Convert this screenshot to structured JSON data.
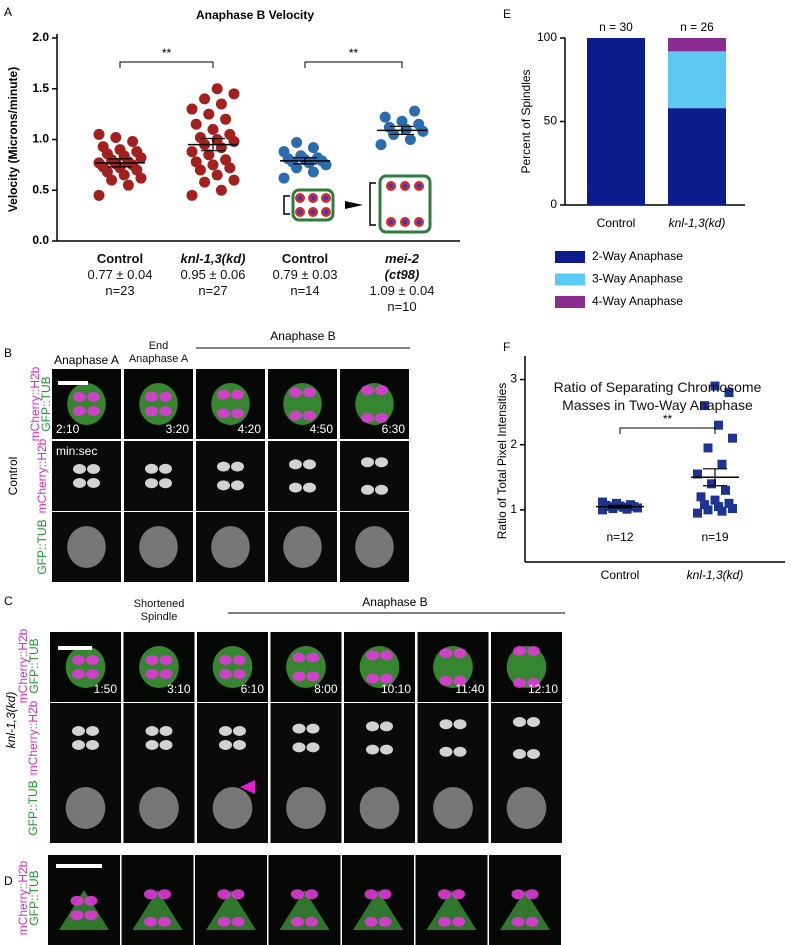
{
  "chart_data": [
    {
      "type": "strip",
      "title": "Anaphase B Velocity",
      "y_label": "Velocity (Microns/minute)",
      "ylim": [
        0,
        2
      ],
      "yticks": [
        {
          "value": 0,
          "label": "0.0"
        },
        0.5,
        {
          "value": 1,
          "label": "1.0"
        },
        1.5,
        {
          "value": 2,
          "label": "2.0"
        }
      ],
      "significance": [
        "**",
        "**"
      ],
      "series": [
        {
          "name": "Control",
          "italic": false,
          "color": "#a3201f",
          "stats_label": "0.77 ± 0.04",
          "n_label": "n=23",
          "mean": 0.77,
          "sem": 0.04,
          "values": [
            0.45,
            0.55,
            0.6,
            0.62,
            0.65,
            0.68,
            0.7,
            0.72,
            0.73,
            0.75,
            0.76,
            0.77,
            0.78,
            0.8,
            0.82,
            0.84,
            0.86,
            0.88,
            0.9,
            0.93,
            0.98,
            1.02,
            1.05
          ]
        },
        {
          "name": "knl-1,3(kd)",
          "italic": true,
          "color": "#a3201f",
          "stats_label": "0.95 ± 0.06",
          "n_label": "n=27",
          "mean": 0.95,
          "sem": 0.06,
          "values": [
            0.45,
            0.5,
            0.58,
            0.6,
            0.65,
            0.7,
            0.72,
            0.75,
            0.78,
            0.8,
            0.85,
            0.88,
            0.92,
            0.95,
            0.98,
            1.0,
            1.02,
            1.05,
            1.1,
            1.15,
            1.2,
            1.25,
            1.3,
            1.35,
            1.4,
            1.45,
            1.5
          ]
        },
        {
          "name": "Control",
          "italic": false,
          "color": "#2b6cae",
          "stats_label": "0.79 ± 0.03",
          "n_label": "n=14",
          "mean": 0.79,
          "sem": 0.03,
          "values": [
            0.62,
            0.68,
            0.72,
            0.75,
            0.77,
            0.78,
            0.79,
            0.8,
            0.81,
            0.82,
            0.84,
            0.88,
            0.92,
            0.97
          ]
        },
        {
          "name": "mei-2 (ct98)",
          "italic": true,
          "color": "#2b6cae",
          "stats_label": "1.09 ± 0.04",
          "n_label": "n=10",
          "mean": 1.09,
          "sem": 0.04,
          "values": [
            0.95,
            1.0,
            1.05,
            1.08,
            1.1,
            1.12,
            1.15,
            1.18,
            1.22,
            1.28
          ]
        }
      ]
    },
    {
      "type": "stacked_bar",
      "y_label": "Percent of Spindles",
      "ylim": [
        0,
        100
      ],
      "yticks": [
        0,
        50,
        100
      ],
      "categories": [
        "Control",
        "knl-1,3(kd)"
      ],
      "n_labels": [
        "n = 30",
        "n = 26"
      ],
      "series": [
        {
          "name": "2-Way Anaphase",
          "color": "#0c1c8e",
          "values": [
            100,
            58
          ]
        },
        {
          "name": "3-Way Anaphase",
          "color": "#5cc8f4",
          "values": [
            0,
            34
          ]
        },
        {
          "name": "4-Way Anaphase",
          "color": "#8c2c90",
          "values": [
            0,
            8
          ]
        }
      ]
    },
    {
      "type": "strip",
      "title": "Ratio of Separating Chromosome Masses in Two-Way Anaphase",
      "y_label": "Ratio of Total Pixel Intensities",
      "ylim": [
        0.2,
        3.3
      ],
      "yticks": [
        1,
        2,
        3
      ],
      "significance": [
        "**"
      ],
      "series": [
        {
          "name": "Control",
          "italic": false,
          "color": "#1d3590",
          "n_label": "n=12",
          "mean": 1.05,
          "sem": 0.02,
          "values": [
            1.0,
            1.01,
            1.02,
            1.03,
            1.04,
            1.05,
            1.05,
            1.06,
            1.07,
            1.08,
            1.1,
            1.12
          ]
        },
        {
          "name": "knl-1,3(kd)",
          "italic": true,
          "color": "#1d3590",
          "n_label": "n=19",
          "mean": 1.5,
          "sem": 0.13,
          "values": [
            0.95,
            0.98,
            1.0,
            1.02,
            1.05,
            1.08,
            1.1,
            1.15,
            1.2,
            1.3,
            1.4,
            1.55,
            1.7,
            1.95,
            2.1,
            2.3,
            2.6,
            2.8,
            2.9
          ]
        }
      ]
    }
  ],
  "panels": {
    "labels": [
      "A",
      "B",
      "C",
      "D",
      "E",
      "F"
    ],
    "B": {
      "headers": [
        "Anaphase A",
        "End Anaphase A",
        "Anaphase B"
      ],
      "condition": "Control",
      "channels": [
        "mCherry::H2b",
        "GFP::TUB"
      ],
      "row_labels": [
        "mCherry::H2b",
        "GFP::TUB"
      ],
      "times": [
        "2:10",
        "3:20",
        "4:20",
        "4:50",
        "6:30"
      ],
      "time_unit": "min:sec"
    },
    "C": {
      "headers": [
        "Shortened Spindle",
        "Anaphase B"
      ],
      "condition": "knl-1,3(kd)",
      "channels": [
        "mCherry::H2b",
        "GFP::TUB"
      ],
      "row_labels": [
        "mCherry::H2b",
        "GFP::TUB"
      ],
      "times": [
        "1:50",
        "3:10",
        "6:10",
        "8:00",
        "10:10",
        "11:40",
        "12:10"
      ]
    },
    "D": {
      "channels": [
        "mCherry::H2b",
        "GFP::TUB"
      ]
    }
  }
}
